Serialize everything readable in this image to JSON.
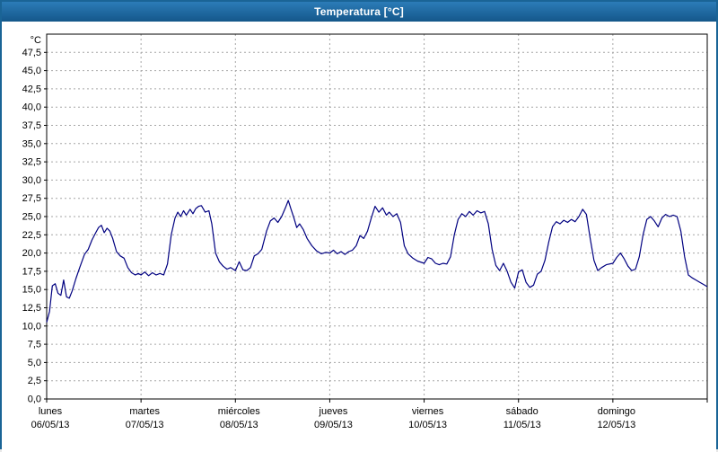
{
  "window": {
    "title": "Temperatura [°C]"
  },
  "colors": {
    "line": "#000080",
    "grid": "#a6a6a6",
    "plot_border": "#000000",
    "title_bar": "#14578a",
    "window_border": "#1a6496"
  },
  "chart_data": {
    "type": "line",
    "title": "Temperatura [°C]",
    "ylabel": "°C",
    "y_axis": {
      "unit_label": "°C",
      "min": 0,
      "max": 47.5,
      "scale_top": 50,
      "tick_step": 2.5,
      "tick_labels": [
        "0,0",
        "2,5",
        "5,0",
        "7,5",
        "10,0",
        "12,5",
        "15,0",
        "17,5",
        "20,0",
        "22,5",
        "25,0",
        "27,5",
        "30,0",
        "32,5",
        "35,0",
        "37,5",
        "40,0",
        "42,5",
        "45,0",
        "47,5"
      ]
    },
    "x_axis": {
      "span_days": 7,
      "days": [
        {
          "name": "lunes",
          "date": "06/05/13"
        },
        {
          "name": "martes",
          "date": "07/05/13"
        },
        {
          "name": "miércoles",
          "date": "08/05/13"
        },
        {
          "name": "jueves",
          "date": "09/05/13"
        },
        {
          "name": "viernes",
          "date": "10/05/13"
        },
        {
          "name": "sábado",
          "date": "11/05/13"
        },
        {
          "name": "domingo",
          "date": "12/05/13"
        }
      ]
    },
    "grid": true,
    "legend": "none",
    "series": [
      {
        "name": "Temperatura",
        "color": "#000080",
        "points": [
          [
            0.0,
            10.5
          ],
          [
            0.03,
            12.0
          ],
          [
            0.06,
            15.5
          ],
          [
            0.09,
            15.8
          ],
          [
            0.12,
            14.5
          ],
          [
            0.15,
            14.2
          ],
          [
            0.18,
            16.3
          ],
          [
            0.21,
            14.0
          ],
          [
            0.24,
            13.8
          ],
          [
            0.27,
            14.8
          ],
          [
            0.31,
            16.5
          ],
          [
            0.35,
            18.0
          ],
          [
            0.4,
            19.8
          ],
          [
            0.44,
            20.5
          ],
          [
            0.48,
            21.8
          ],
          [
            0.52,
            22.8
          ],
          [
            0.55,
            23.5
          ],
          [
            0.58,
            23.8
          ],
          [
            0.61,
            22.8
          ],
          [
            0.64,
            23.4
          ],
          [
            0.67,
            23.0
          ],
          [
            0.7,
            22.0
          ],
          [
            0.74,
            20.2
          ],
          [
            0.78,
            19.6
          ],
          [
            0.82,
            19.3
          ],
          [
            0.86,
            18.0
          ],
          [
            0.9,
            17.3
          ],
          [
            0.94,
            17.0
          ],
          [
            0.97,
            17.2
          ],
          [
            1.0,
            17.0
          ],
          [
            1.04,
            17.4
          ],
          [
            1.08,
            16.9
          ],
          [
            1.12,
            17.3
          ],
          [
            1.16,
            17.0
          ],
          [
            1.2,
            17.2
          ],
          [
            1.24,
            17.0
          ],
          [
            1.28,
            18.5
          ],
          [
            1.32,
            22.5
          ],
          [
            1.36,
            24.8
          ],
          [
            1.39,
            25.6
          ],
          [
            1.42,
            25.0
          ],
          [
            1.45,
            25.8
          ],
          [
            1.48,
            25.2
          ],
          [
            1.52,
            26.0
          ],
          [
            1.55,
            25.4
          ],
          [
            1.58,
            26.1
          ],
          [
            1.61,
            26.4
          ],
          [
            1.64,
            26.5
          ],
          [
            1.68,
            25.6
          ],
          [
            1.72,
            25.8
          ],
          [
            1.75,
            24.0
          ],
          [
            1.79,
            20.0
          ],
          [
            1.83,
            18.8
          ],
          [
            1.87,
            18.2
          ],
          [
            1.91,
            17.8
          ],
          [
            1.95,
            18.0
          ],
          [
            2.0,
            17.6
          ],
          [
            2.04,
            18.8
          ],
          [
            2.08,
            17.7
          ],
          [
            2.12,
            17.6
          ],
          [
            2.16,
            18.0
          ],
          [
            2.2,
            19.6
          ],
          [
            2.24,
            19.9
          ],
          [
            2.28,
            20.5
          ],
          [
            2.33,
            23.0
          ],
          [
            2.37,
            24.4
          ],
          [
            2.41,
            24.8
          ],
          [
            2.45,
            24.2
          ],
          [
            2.49,
            25.0
          ],
          [
            2.53,
            26.2
          ],
          [
            2.56,
            27.2
          ],
          [
            2.59,
            26.0
          ],
          [
            2.62,
            24.8
          ],
          [
            2.65,
            23.5
          ],
          [
            2.68,
            24.0
          ],
          [
            2.72,
            23.2
          ],
          [
            2.76,
            22.0
          ],
          [
            2.81,
            21.0
          ],
          [
            2.86,
            20.3
          ],
          [
            2.91,
            19.9
          ],
          [
            2.96,
            20.1
          ],
          [
            3.0,
            20.0
          ],
          [
            3.04,
            20.4
          ],
          [
            3.08,
            19.9
          ],
          [
            3.12,
            20.2
          ],
          [
            3.16,
            19.8
          ],
          [
            3.2,
            20.2
          ],
          [
            3.24,
            20.4
          ],
          [
            3.28,
            21.0
          ],
          [
            3.32,
            22.4
          ],
          [
            3.36,
            22.0
          ],
          [
            3.4,
            23.0
          ],
          [
            3.44,
            24.8
          ],
          [
            3.48,
            26.4
          ],
          [
            3.52,
            25.6
          ],
          [
            3.56,
            26.2
          ],
          [
            3.6,
            25.2
          ],
          [
            3.63,
            25.6
          ],
          [
            3.67,
            25.0
          ],
          [
            3.71,
            25.4
          ],
          [
            3.75,
            24.2
          ],
          [
            3.79,
            21.0
          ],
          [
            3.83,
            19.9
          ],
          [
            3.88,
            19.3
          ],
          [
            3.93,
            18.9
          ],
          [
            4.0,
            18.6
          ],
          [
            4.04,
            19.4
          ],
          [
            4.08,
            19.2
          ],
          [
            4.12,
            18.6
          ],
          [
            4.16,
            18.4
          ],
          [
            4.2,
            18.6
          ],
          [
            4.24,
            18.5
          ],
          [
            4.28,
            19.5
          ],
          [
            4.32,
            22.5
          ],
          [
            4.36,
            24.6
          ],
          [
            4.4,
            25.4
          ],
          [
            4.44,
            25.0
          ],
          [
            4.48,
            25.7
          ],
          [
            4.52,
            25.2
          ],
          [
            4.56,
            25.8
          ],
          [
            4.6,
            25.5
          ],
          [
            4.64,
            25.7
          ],
          [
            4.68,
            24.0
          ],
          [
            4.72,
            20.5
          ],
          [
            4.76,
            18.3
          ],
          [
            4.8,
            17.6
          ],
          [
            4.84,
            18.6
          ],
          [
            4.88,
            17.5
          ],
          [
            4.92,
            16.0
          ],
          [
            4.96,
            15.2
          ],
          [
            5.0,
            17.4
          ],
          [
            5.04,
            17.7
          ],
          [
            5.08,
            16.0
          ],
          [
            5.12,
            15.3
          ],
          [
            5.16,
            15.6
          ],
          [
            5.2,
            17.1
          ],
          [
            5.24,
            17.5
          ],
          [
            5.28,
            19.0
          ],
          [
            5.32,
            21.5
          ],
          [
            5.36,
            23.6
          ],
          [
            5.4,
            24.3
          ],
          [
            5.44,
            24.0
          ],
          [
            5.48,
            24.5
          ],
          [
            5.52,
            24.2
          ],
          [
            5.56,
            24.6
          ],
          [
            5.6,
            24.3
          ],
          [
            5.64,
            25.0
          ],
          [
            5.68,
            26.0
          ],
          [
            5.72,
            25.3
          ],
          [
            5.76,
            22.0
          ],
          [
            5.8,
            19.0
          ],
          [
            5.84,
            17.6
          ],
          [
            5.88,
            18.0
          ],
          [
            5.93,
            18.4
          ],
          [
            6.0,
            18.6
          ],
          [
            6.04,
            19.4
          ],
          [
            6.08,
            20.0
          ],
          [
            6.12,
            19.2
          ],
          [
            6.16,
            18.2
          ],
          [
            6.2,
            17.6
          ],
          [
            6.24,
            17.8
          ],
          [
            6.28,
            19.5
          ],
          [
            6.32,
            22.5
          ],
          [
            6.36,
            24.6
          ],
          [
            6.4,
            25.0
          ],
          [
            6.44,
            24.4
          ],
          [
            6.48,
            23.6
          ],
          [
            6.52,
            24.8
          ],
          [
            6.56,
            25.3
          ],
          [
            6.6,
            25.0
          ],
          [
            6.64,
            25.2
          ],
          [
            6.68,
            25.0
          ],
          [
            6.72,
            23.0
          ],
          [
            6.76,
            19.5
          ],
          [
            6.8,
            17.0
          ],
          [
            6.84,
            16.6
          ],
          [
            6.88,
            16.3
          ],
          [
            6.92,
            16.0
          ],
          [
            6.96,
            15.7
          ],
          [
            7.0,
            15.4
          ]
        ]
      }
    ]
  }
}
